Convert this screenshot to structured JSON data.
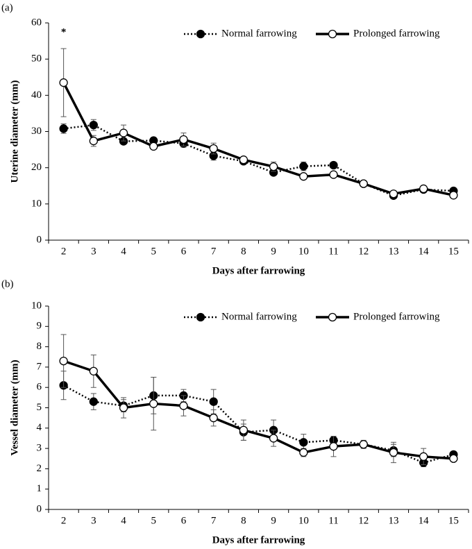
{
  "chart_data": [
    {
      "type": "line",
      "panel_label": "(a)",
      "annotation": "*",
      "x_label": "Days after farrowing",
      "y_label": "Uterine diameter (mm)",
      "categories": [
        "2",
        "3",
        "4",
        "5",
        "6",
        "7",
        "8",
        "9",
        "10",
        "11",
        "12",
        "13",
        "14",
        "15"
      ],
      "ylim": [
        0,
        60
      ],
      "yticks": [
        0,
        10,
        20,
        30,
        40,
        50,
        60
      ],
      "grid": false,
      "legend": "top-right",
      "series": [
        {
          "name": "Normal farrowing",
          "color": "#000000",
          "line_style": "dotted",
          "marker_fill": "#000000",
          "values": [
            30.8,
            31.8,
            27.3,
            27.5,
            26.7,
            23.3,
            21.8,
            18.7,
            20.4,
            20.7,
            15.6,
            12.3,
            14.0,
            13.6
          ],
          "errors": [
            1.3,
            1.5,
            0.8,
            0.8,
            1.0,
            1.2,
            0.5,
            0.7,
            1.2,
            0.5,
            0.5,
            0.5,
            0.6,
            0.5
          ]
        },
        {
          "name": "Prolonged farrowing",
          "color": "#000000",
          "line_style": "solid",
          "marker_fill": "#ffffff",
          "values": [
            43.5,
            27.4,
            29.6,
            25.9,
            27.8,
            25.3,
            22.2,
            20.3,
            17.6,
            18.1,
            15.6,
            12.8,
            14.2,
            12.4
          ],
          "errors": [
            9.4,
            1.5,
            2.2,
            0.8,
            1.8,
            1.5,
            0.6,
            1.3,
            0.5,
            0.5,
            0.4,
            0.6,
            0.8,
            0.5
          ]
        }
      ]
    },
    {
      "type": "line",
      "panel_label": "(b)",
      "x_label": "Days after farrowing",
      "y_label": "Vessel diameter (mm)",
      "categories": [
        "2",
        "3",
        "4",
        "5",
        "6",
        "7",
        "8",
        "9",
        "10",
        "11",
        "12",
        "13",
        "14",
        "15"
      ],
      "ylim": [
        0,
        10
      ],
      "yticks": [
        0,
        1,
        2,
        3,
        4,
        5,
        6,
        7,
        8,
        9,
        10
      ],
      "grid": false,
      "legend": "top-right",
      "series": [
        {
          "name": "Normal farrowing",
          "color": "#000000",
          "line_style": "dotted",
          "marker_fill": "#000000",
          "values": [
            6.1,
            5.3,
            5.1,
            5.6,
            5.6,
            5.3,
            3.8,
            3.9,
            3.3,
            3.4,
            3.2,
            2.9,
            2.3,
            2.7
          ],
          "errors": [
            0.7,
            0.4,
            0.3,
            0.9,
            0.3,
            0.6,
            0.4,
            0.5,
            0.4,
            0.15,
            0.2,
            0.3,
            0.2,
            0.1
          ]
        },
        {
          "name": "Prolonged farrowing",
          "color": "#000000",
          "line_style": "solid",
          "marker_fill": "#ffffff",
          "values": [
            7.3,
            6.8,
            5.0,
            5.2,
            5.1,
            4.5,
            3.9,
            3.5,
            2.8,
            3.1,
            3.2,
            2.8,
            2.6,
            2.5
          ],
          "errors": [
            1.3,
            0.8,
            0.5,
            1.3,
            0.5,
            0.4,
            0.5,
            0.4,
            0.2,
            0.5,
            0.15,
            0.5,
            0.4,
            0.1
          ]
        }
      ]
    }
  ]
}
